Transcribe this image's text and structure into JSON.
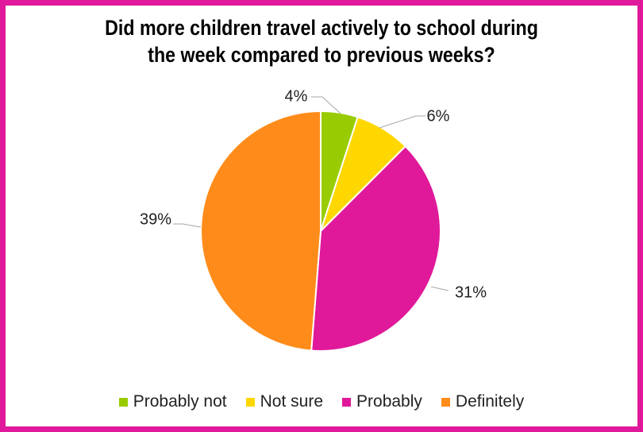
{
  "colors": {
    "frame": "#e0199a",
    "leader": "#a6a6a6",
    "slice_border": "#ffffff"
  },
  "chart_data": {
    "type": "pie",
    "title": "Did more children travel actively to school during the week compared to previous weeks?",
    "title_lines": [
      "Did more children travel actively to school during",
      "the week compared to previous weeks?"
    ],
    "start_angle_deg": 0,
    "direction": "clockwise",
    "legend_position": "bottom",
    "slices": [
      {
        "label": "Probably not",
        "value": 4,
        "display": "4%",
        "color": "#99cc00"
      },
      {
        "label": "Not sure",
        "value": 6,
        "display": "6%",
        "color": "#ffd700"
      },
      {
        "label": "Probably",
        "value": 31,
        "display": "31%",
        "color": "#e0199a"
      },
      {
        "label": "Definitely",
        "value": 39,
        "display": "39%",
        "color": "#ff8c1a"
      }
    ]
  }
}
